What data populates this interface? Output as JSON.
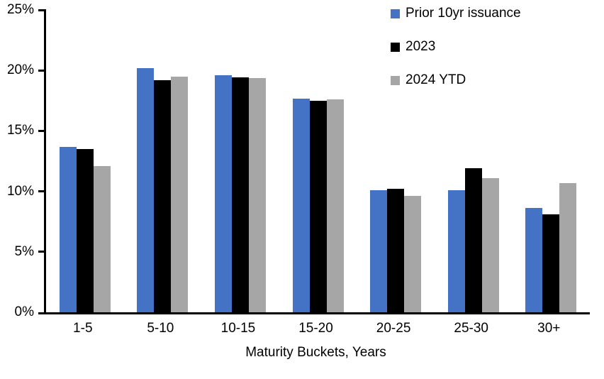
{
  "chart_data": {
    "type": "bar",
    "title": "",
    "xlabel": "Maturity Buckets, Years",
    "ylabel": "",
    "ylim": [
      0,
      25
    ],
    "yticks": [
      "0%",
      "5%",
      "10%",
      "15%",
      "20%",
      "25%"
    ],
    "grid": false,
    "legend_position": "top-right",
    "background_color": "#ffffff",
    "axis_color": "#000000",
    "categories": [
      "1-5",
      "5-10",
      "10-15",
      "15-20",
      "20-25",
      "25-30",
      "30+"
    ],
    "series": [
      {
        "name": "Prior 10yr issuance",
        "color": "#4472C4",
        "values": [
          13.7,
          20.2,
          19.6,
          17.65,
          10.1,
          10.1,
          8.6
        ]
      },
      {
        "name": "2023",
        "color": "#000000",
        "values": [
          13.5,
          19.2,
          19.45,
          17.5,
          10.2,
          11.9,
          8.1
        ]
      },
      {
        "name": "2024 YTD",
        "color": "#A6A6A6",
        "values": [
          12.1,
          19.5,
          19.35,
          17.6,
          9.6,
          11.1,
          10.7
        ]
      }
    ]
  }
}
